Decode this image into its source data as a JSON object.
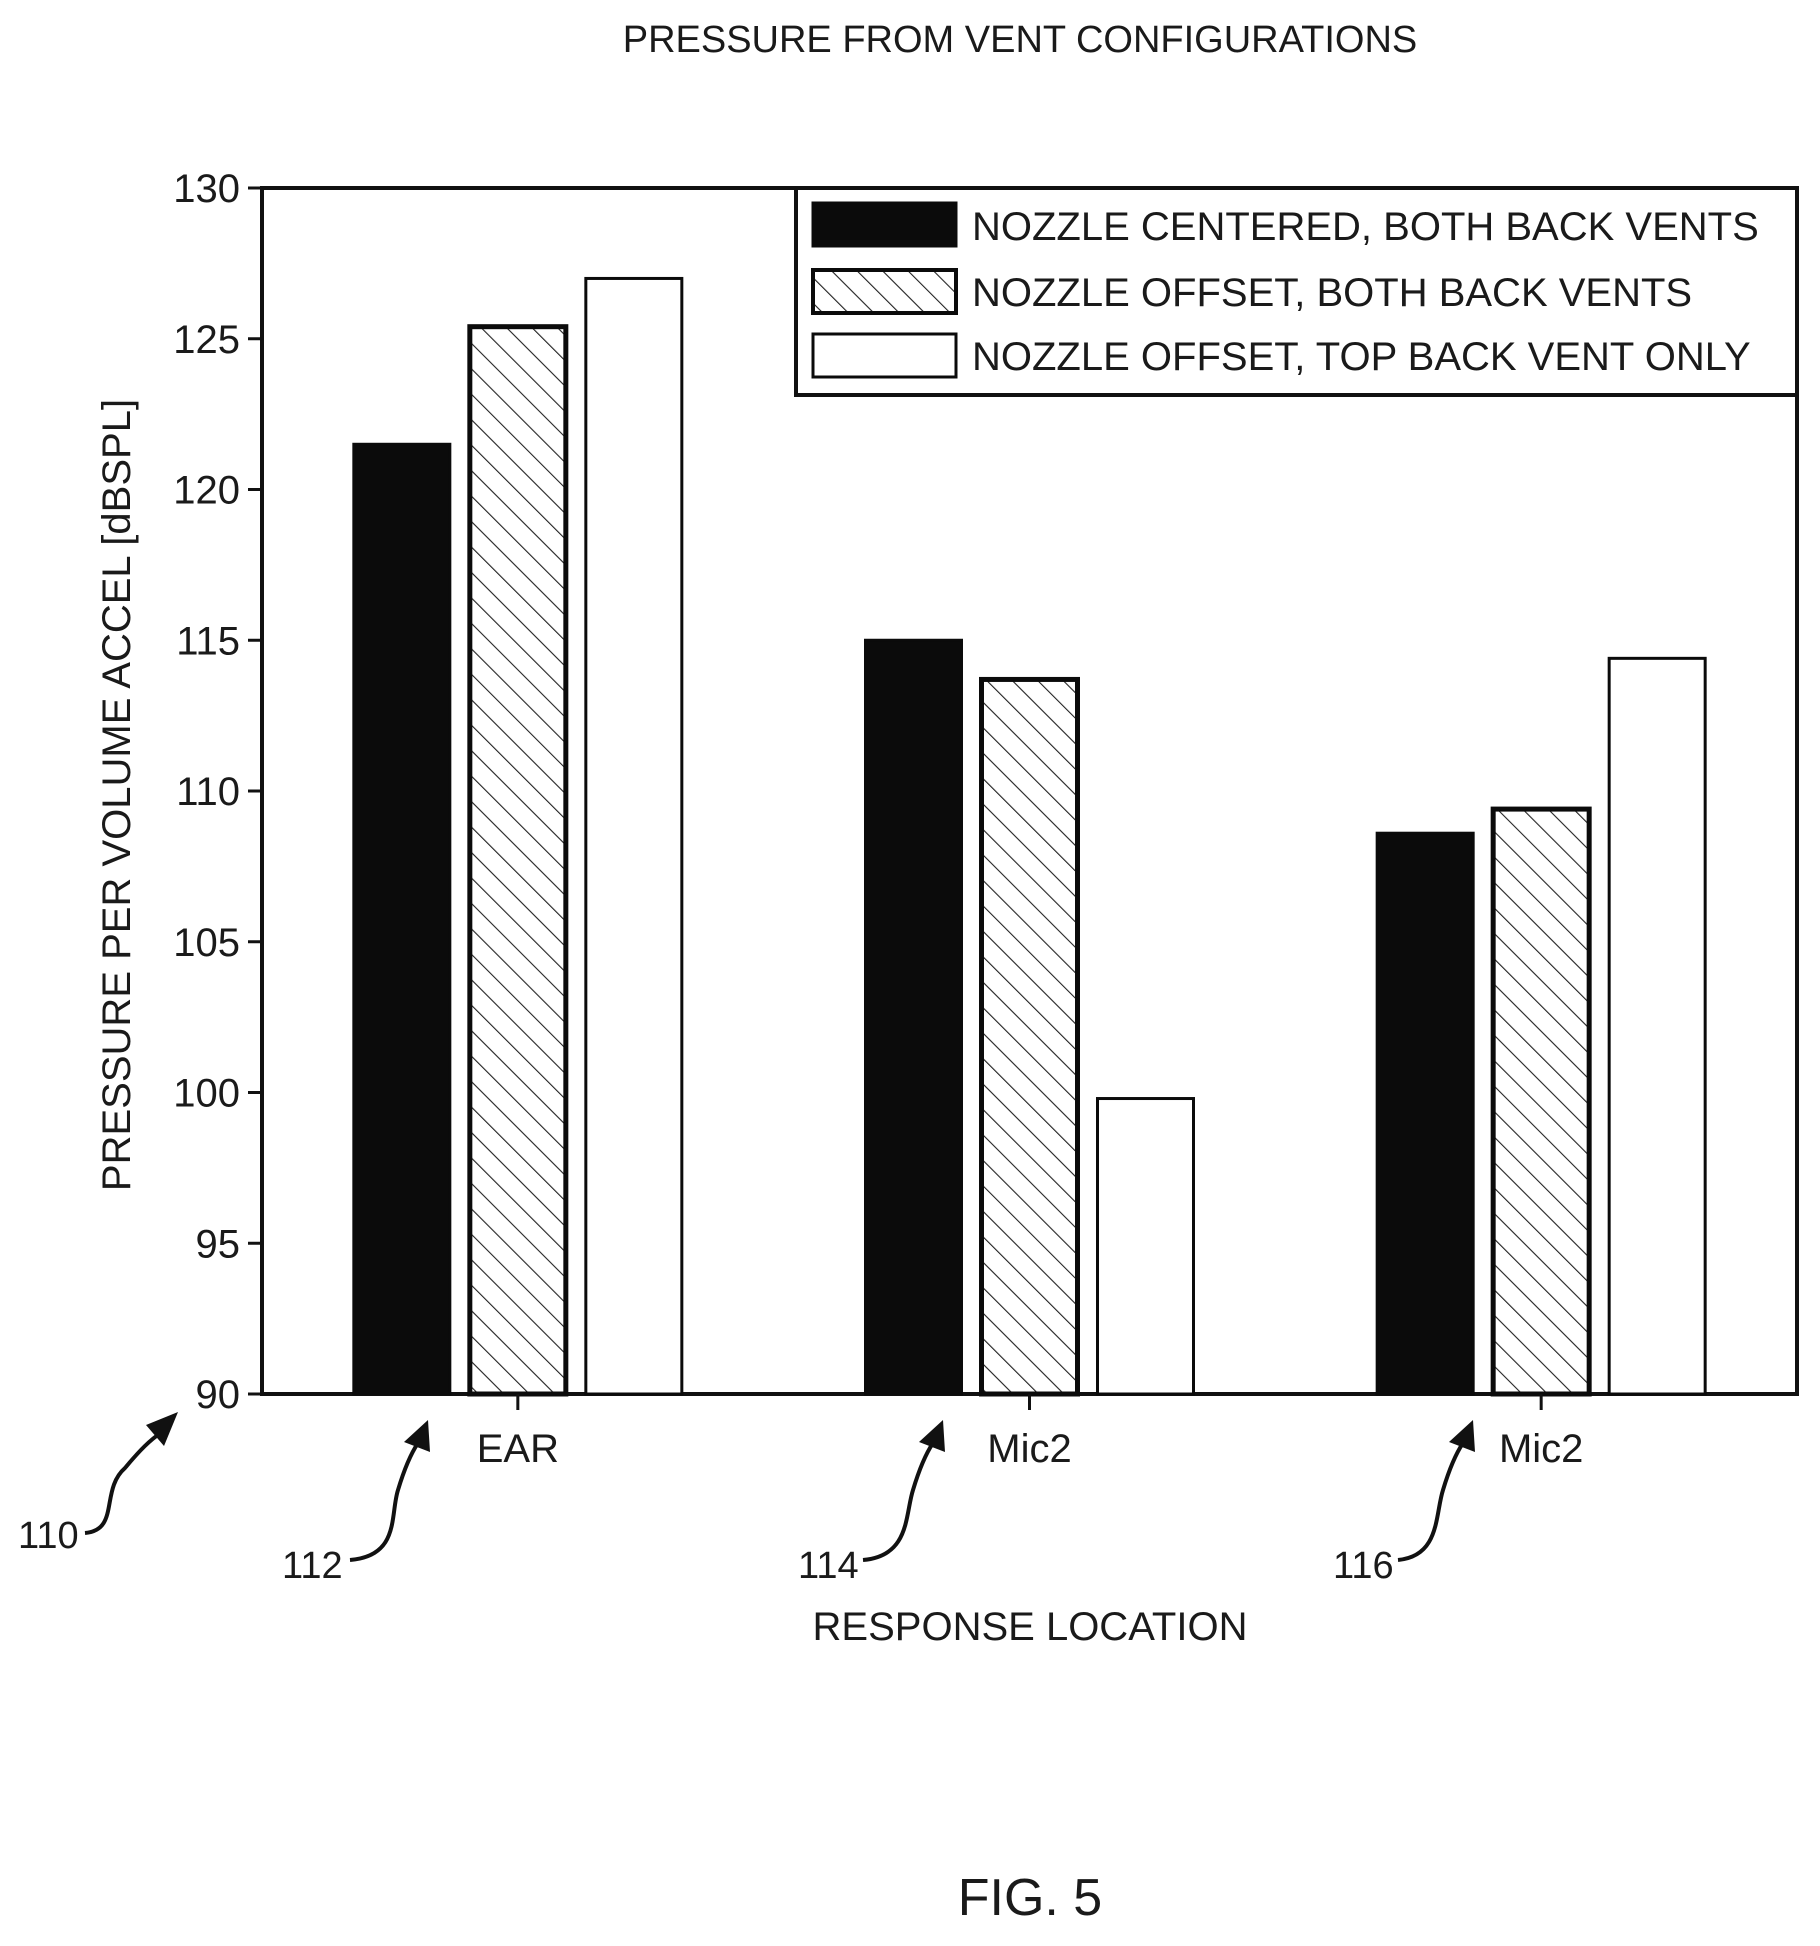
{
  "chart_data": {
    "type": "bar",
    "title": "PRESSURE FROM VENT CONFIGURATIONS",
    "xlabel": "RESPONSE LOCATION",
    "ylabel": "PRESSURE PER VOLUME ACCEL [dBSPL]",
    "categories": [
      "EAR",
      "Mic2",
      "Mic2"
    ],
    "yticks": [
      90,
      95,
      100,
      105,
      110,
      115,
      120,
      125,
      130
    ],
    "ylim": [
      90,
      130
    ],
    "grid": false,
    "legend_position": "top-right",
    "series": [
      {
        "name": "NOZZLE CENTERED, BOTH BACK VENTS",
        "fill": "solid",
        "values": [
          121.5,
          115.0,
          108.6
        ]
      },
      {
        "name": "NOZZLE OFFSET, BOTH BACK VENTS",
        "fill": "hatched",
        "values": [
          125.4,
          113.7,
          109.4
        ]
      },
      {
        "name": "NOZZLE OFFSET, TOP BACK VENT ONLY",
        "fill": "empty",
        "values": [
          127.0,
          99.8,
          114.4
        ]
      }
    ],
    "annotations": [
      "110",
      "112",
      "114",
      "116"
    ]
  },
  "figure_caption": "FIG. 5",
  "colors": {
    "ink": "#111111",
    "background": "#ffffff"
  }
}
